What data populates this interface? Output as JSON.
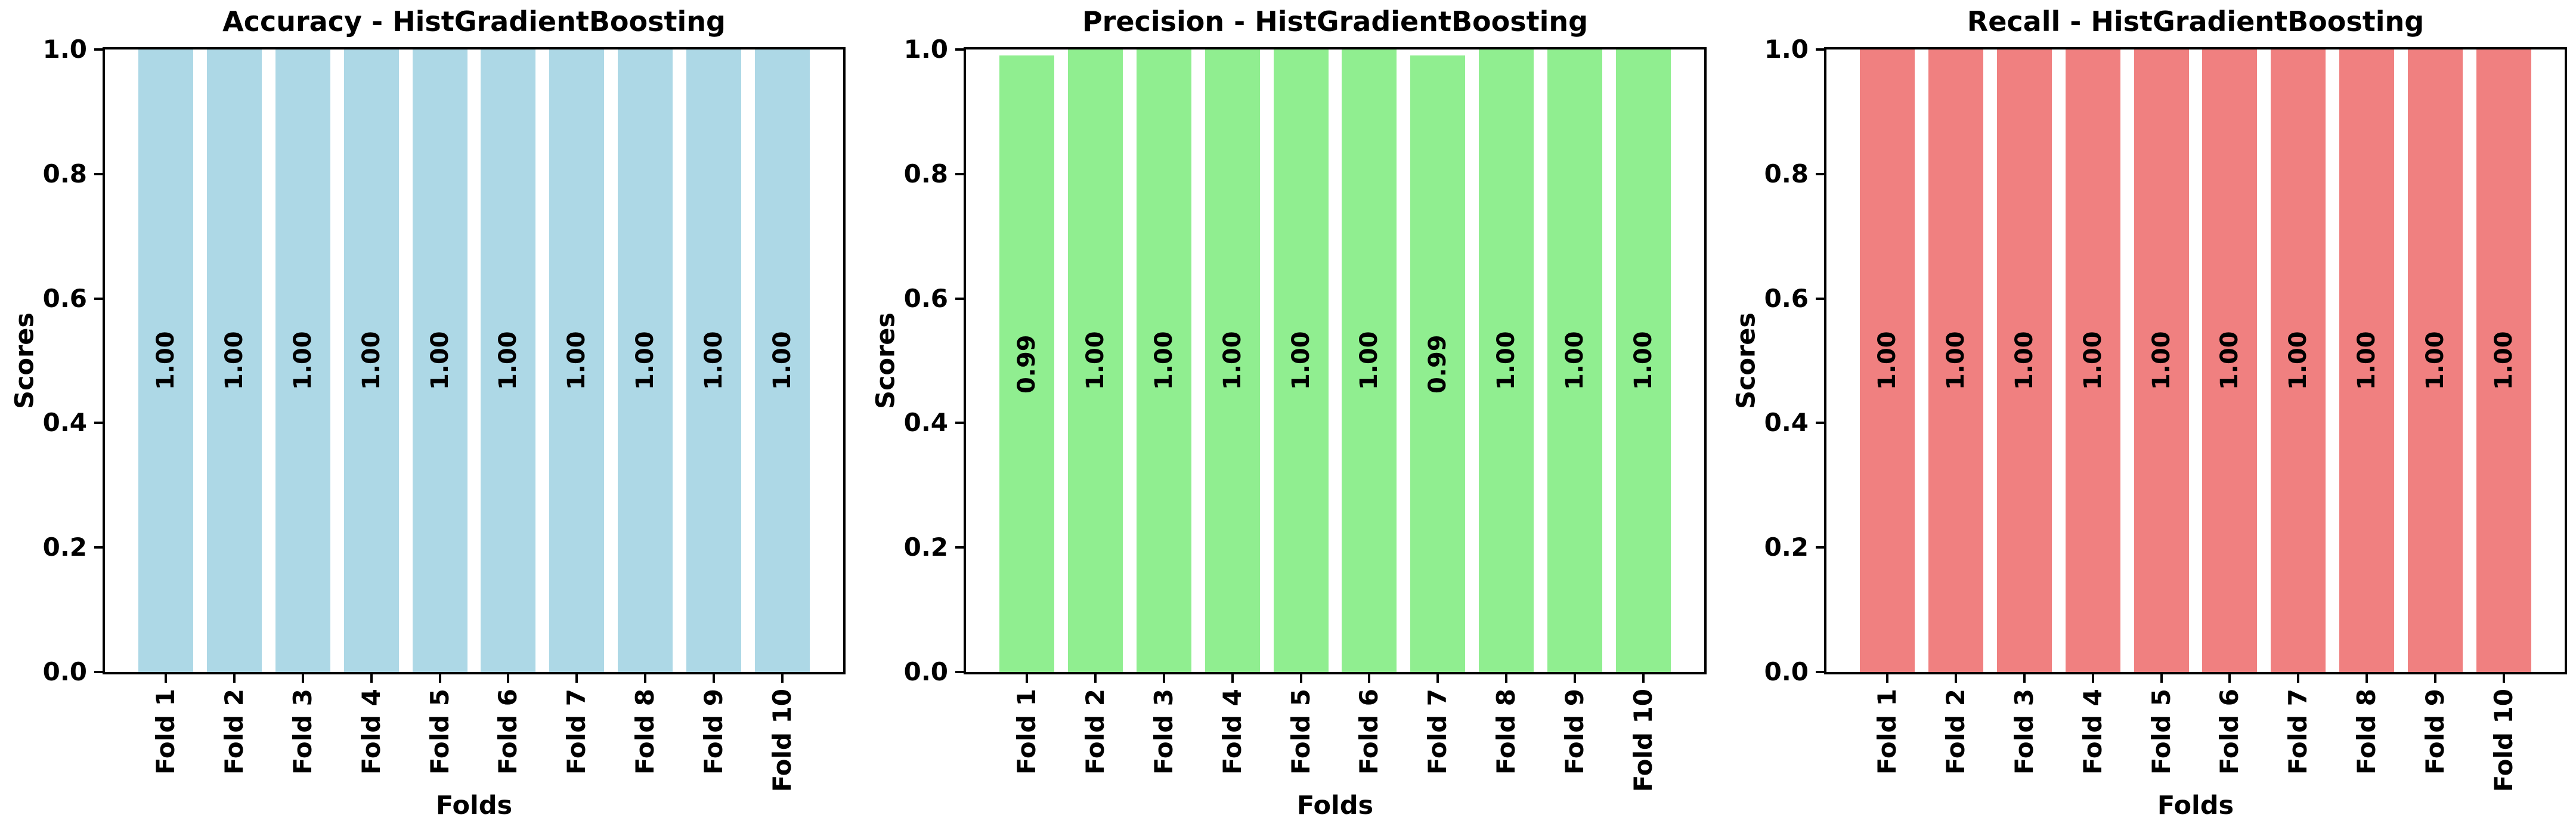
{
  "figure": {
    "background": "#ffffff",
    "text_color": "#000000",
    "spine_color": "#000000"
  },
  "chart_data": [
    {
      "type": "bar",
      "title": "Accuracy - HistGradientBoosting",
      "xlabel": "Folds",
      "ylabel": "Scores",
      "categories": [
        "Fold 1",
        "Fold 2",
        "Fold 3",
        "Fold 4",
        "Fold 5",
        "Fold 6",
        "Fold 7",
        "Fold 8",
        "Fold 9",
        "Fold 10"
      ],
      "values": [
        1.0,
        1.0,
        1.0,
        1.0,
        1.0,
        1.0,
        1.0,
        1.0,
        1.0,
        1.0
      ],
      "bar_labels": [
        "1.00",
        "1.00",
        "1.00",
        "1.00",
        "1.00",
        "1.00",
        "1.00",
        "1.00",
        "1.00",
        "1.00"
      ],
      "bar_color": "#ADD8E6",
      "ylim": [
        0.0,
        1.0
      ],
      "ytick_labels": [
        "0.0",
        "0.2",
        "0.4",
        "0.6",
        "0.8",
        "1.0"
      ],
      "grid": false,
      "legend": "none"
    },
    {
      "type": "bar",
      "title": "Precision - HistGradientBoosting",
      "xlabel": "Folds",
      "ylabel": "Scores",
      "categories": [
        "Fold 1",
        "Fold 2",
        "Fold 3",
        "Fold 4",
        "Fold 5",
        "Fold 6",
        "Fold 7",
        "Fold 8",
        "Fold 9",
        "Fold 10"
      ],
      "values": [
        0.99,
        1.0,
        1.0,
        1.0,
        1.0,
        1.0,
        0.99,
        1.0,
        1.0,
        1.0
      ],
      "bar_labels": [
        "0.99",
        "1.00",
        "1.00",
        "1.00",
        "1.00",
        "1.00",
        "0.99",
        "1.00",
        "1.00",
        "1.00"
      ],
      "bar_color": "#90EE90",
      "ylim": [
        0.0,
        1.0
      ],
      "ytick_labels": [
        "0.0",
        "0.2",
        "0.4",
        "0.6",
        "0.8",
        "1.0"
      ],
      "grid": false,
      "legend": "none"
    },
    {
      "type": "bar",
      "title": "Recall - HistGradientBoosting",
      "xlabel": "Folds",
      "ylabel": "Scores",
      "categories": [
        "Fold 1",
        "Fold 2",
        "Fold 3",
        "Fold 4",
        "Fold 5",
        "Fold 6",
        "Fold 7",
        "Fold 8",
        "Fold 9",
        "Fold 10"
      ],
      "values": [
        1.0,
        1.0,
        1.0,
        1.0,
        1.0,
        1.0,
        1.0,
        1.0,
        1.0,
        1.0
      ],
      "bar_labels": [
        "1.00",
        "1.00",
        "1.00",
        "1.00",
        "1.00",
        "1.00",
        "1.00",
        "1.00",
        "1.00",
        "1.00"
      ],
      "bar_color": "#F08080",
      "ylim": [
        0.0,
        1.0
      ],
      "ytick_labels": [
        "0.0",
        "0.2",
        "0.4",
        "0.6",
        "0.8",
        "1.0"
      ],
      "grid": false,
      "legend": "none"
    }
  ]
}
